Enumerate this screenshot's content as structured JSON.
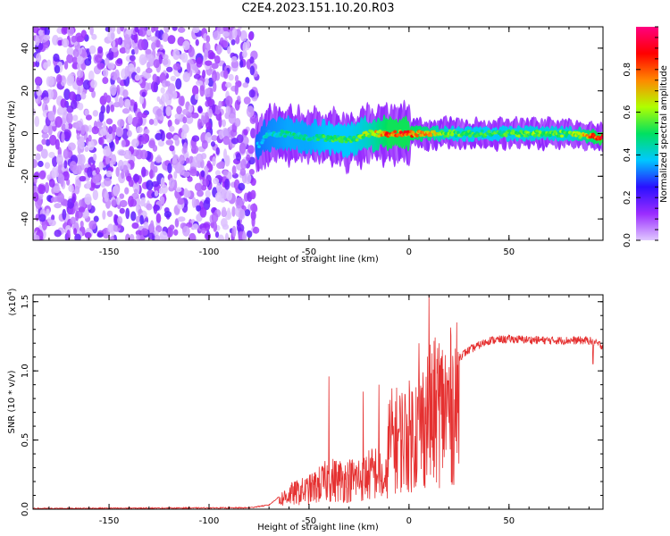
{
  "title": "C2E4.2023.151.10.20.R03",
  "colors": {
    "signal": "#e53030",
    "axis": "#000000"
  },
  "chart_data": [
    {
      "type": "heatmap",
      "xlabel": "Height of straight line (km)",
      "ylabel": "Frequency (Hz)",
      "xlim": [
        -188,
        97
      ],
      "ylim": [
        -50,
        50
      ],
      "xticks": [
        -150,
        -100,
        -50,
        0,
        50
      ],
      "xtick_labels": [
        "-150",
        "-100",
        "-50",
        "0",
        "50"
      ],
      "yticks": [
        -40,
        -20,
        0,
        20,
        40
      ],
      "ytick_labels": [
        "-40",
        "-20",
        "0",
        "20",
        "40"
      ],
      "colorbar": {
        "label": "Normalized spectral amplitude",
        "range": [
          0,
          1
        ],
        "ticks": [
          0.0,
          0.2,
          0.4,
          0.6,
          0.8
        ],
        "tick_labels": [
          "0.0",
          "0.2",
          "0.4",
          "0.6",
          "0.8"
        ],
        "stops": [
          "#e0c8ff",
          "#9a2cff",
          "#2a10ff",
          "#00c8ff",
          "#00e060",
          "#b0ff00",
          "#ff8800",
          "#ff0000",
          "#ff0080"
        ]
      },
      "noise_region_x": [
        -188,
        -76
      ],
      "band": {
        "x": [
          -76,
          -70,
          -60,
          -50,
          -40,
          -30,
          -20,
          -10,
          0,
          10,
          20,
          40,
          60,
          80,
          97
        ],
        "center_hz": [
          -6,
          0,
          0,
          -2,
          -2,
          -3,
          0,
          0,
          0,
          0,
          0,
          0,
          0,
          0,
          -2
        ],
        "amplitude": [
          0.35,
          0.4,
          0.45,
          0.45,
          0.5,
          0.5,
          0.6,
          0.8,
          0.8,
          0.7,
          0.55,
          0.5,
          0.55,
          0.55,
          0.85
        ]
      },
      "grid": false
    },
    {
      "type": "line",
      "xlabel": "Height of straight line (km)",
      "ylabel": "SNR (10 * v/v)",
      "scale_label": "(x10",
      "scale_exp": "4",
      "scale_close": ")",
      "xlim": [
        -188,
        97
      ],
      "ylim": [
        0,
        1.55
      ],
      "xticks": [
        -150,
        -100,
        -50,
        0,
        50
      ],
      "xtick_labels": [
        "-150",
        "-100",
        "-50",
        "0",
        "50"
      ],
      "yticks": [
        0,
        0.5,
        1.0,
        1.5
      ],
      "ytick_labels": [
        "0.0",
        "0.5",
        "1.0",
        "1.5"
      ],
      "envelope": {
        "x": [
          -188,
          -80,
          -70,
          -60,
          -50,
          -45,
          -40,
          -35,
          -30,
          -25,
          -20,
          -15,
          -12,
          -10,
          0,
          5,
          10,
          13,
          20,
          30,
          40,
          50,
          70,
          90,
          97
        ],
        "y": [
          0.005,
          0.01,
          0.03,
          0.15,
          0.2,
          0.25,
          0.3,
          0.3,
          0.3,
          0.32,
          0.35,
          0.4,
          0.2,
          0.7,
          0.75,
          0.85,
          0.95,
          1.0,
          1.05,
          1.15,
          1.22,
          1.23,
          1.22,
          1.22,
          1.18
        ]
      },
      "spikes": [
        {
          "x": -40,
          "y": 0.96
        },
        {
          "x": -23,
          "y": 0.85
        },
        {
          "x": -15,
          "y": 0.9
        },
        {
          "x": 5,
          "y": 1.2
        },
        {
          "x": 10,
          "y": 1.55
        },
        {
          "x": 12,
          "y": 0.35
        },
        {
          "x": 15,
          "y": 1.2
        },
        {
          "x": 92,
          "y": 1.05
        }
      ],
      "grid": false
    }
  ]
}
